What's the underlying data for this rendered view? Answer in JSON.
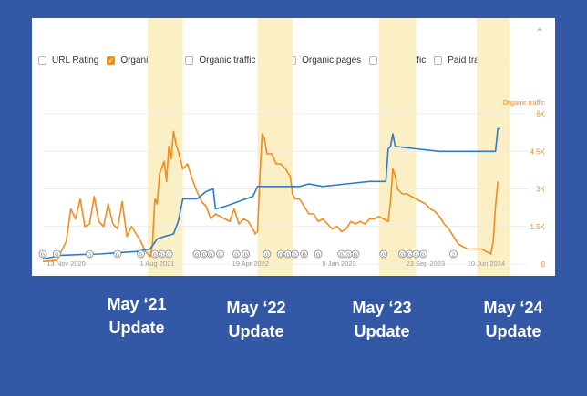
{
  "legend": [
    {
      "label": "URL Rating",
      "checked": false
    },
    {
      "label": "Organic traffic",
      "checked": true
    },
    {
      "label": "Organic traffic value",
      "checked": false
    },
    {
      "label": "Organic pages",
      "checked": false
    },
    {
      "label": "Paid traffic",
      "checked": false
    },
    {
      "label": "Paid traffic cost",
      "checked": false
    }
  ],
  "collapse_icon": "chevron-up-icon",
  "colors": {
    "organic": "#f28c1e",
    "url_rating": "#2f7bc8",
    "highlight": "#fbefc6",
    "grid": "#ececec",
    "axis_text": "#9a9a9a",
    "background": "#3358a6"
  },
  "update_labels": [
    {
      "line1": "May ‘21",
      "line2": "Update"
    },
    {
      "line1": "May ‘22",
      "line2": "Update"
    },
    {
      "line1": "May ‘23",
      "line2": "Update"
    },
    {
      "line1": "May ‘24",
      "line2": "Update"
    }
  ],
  "chart_data": {
    "type": "line",
    "right_axis_title": "Organic traffic",
    "ylim": [
      0,
      6000
    ],
    "y_ticks": [
      0,
      1500,
      3000,
      4500,
      6000
    ],
    "y_tick_labels": [
      "0",
      "1.5K",
      "3K",
      "4.5K",
      "6K"
    ],
    "xlim": [
      0,
      100
    ],
    "x_ticks": [
      {
        "x": 5,
        "label": "13 Nov 2020"
      },
      {
        "x": 24.5,
        "label": "1 Aug 2021"
      },
      {
        "x": 44.5,
        "label": "19 Apr 2022"
      },
      {
        "x": 63.5,
        "label": "5 Jan 2023"
      },
      {
        "x": 82,
        "label": "23 Sep 2023"
      },
      {
        "x": 95,
        "label": "10 Jun 2024"
      }
    ],
    "highlight_bands": [
      {
        "from": 22.5,
        "to": 30
      },
      {
        "from": 46,
        "to": 53.5
      },
      {
        "from": 72,
        "to": 80
      },
      {
        "from": 93,
        "to": 100
      }
    ],
    "annotation_markers": [
      {
        "x": 0,
        "label": "G"
      },
      {
        "x": 3,
        "label": "G"
      },
      {
        "x": 10,
        "label": "G"
      },
      {
        "x": 16,
        "label": "G"
      },
      {
        "x": 21,
        "label": "G"
      },
      {
        "x": 24,
        "label": "G"
      },
      {
        "x": 25.5,
        "label": "G"
      },
      {
        "x": 27,
        "label": "G"
      },
      {
        "x": 33,
        "label": "G"
      },
      {
        "x": 34.5,
        "label": "G"
      },
      {
        "x": 36,
        "label": "G"
      },
      {
        "x": 38,
        "label": "G"
      },
      {
        "x": 41.5,
        "label": "G"
      },
      {
        "x": 43.5,
        "label": "G"
      },
      {
        "x": 48,
        "label": "G"
      },
      {
        "x": 51,
        "label": "G"
      },
      {
        "x": 52.5,
        "label": "G"
      },
      {
        "x": 54,
        "label": "G"
      },
      {
        "x": 56,
        "label": "G"
      },
      {
        "x": 59,
        "label": "G"
      },
      {
        "x": 64,
        "label": "G"
      },
      {
        "x": 65.5,
        "label": "G"
      },
      {
        "x": 67,
        "label": "G"
      },
      {
        "x": 73,
        "label": "G"
      },
      {
        "x": 77,
        "label": "G"
      },
      {
        "x": 78.5,
        "label": "G"
      },
      {
        "x": 80,
        "label": "G"
      },
      {
        "x": 81.5,
        "label": "G"
      },
      {
        "x": 88,
        "label": "2"
      }
    ],
    "series": [
      {
        "name": "Organic traffic",
        "color": "#f28c1e",
        "points": [
          [
            0,
            100
          ],
          [
            3,
            150
          ],
          [
            5,
            900
          ],
          [
            6,
            2200
          ],
          [
            7,
            1800
          ],
          [
            8,
            2600
          ],
          [
            9,
            1500
          ],
          [
            10,
            1600
          ],
          [
            11,
            2700
          ],
          [
            12,
            1700
          ],
          [
            13,
            1500
          ],
          [
            14,
            2400
          ],
          [
            15,
            1600
          ],
          [
            16,
            1400
          ],
          [
            17,
            2500
          ],
          [
            18,
            1100
          ],
          [
            19,
            1500
          ],
          [
            20,
            1200
          ],
          [
            21,
            900
          ],
          [
            22,
            500
          ],
          [
            22.5,
            400
          ],
          [
            23,
            300
          ],
          [
            23.5,
            800
          ],
          [
            24,
            2600
          ],
          [
            24.5,
            2400
          ],
          [
            25,
            3600
          ],
          [
            26,
            4100
          ],
          [
            26.5,
            3300
          ],
          [
            27,
            4700
          ],
          [
            27.5,
            4200
          ],
          [
            28,
            5300
          ],
          [
            28.5,
            4800
          ],
          [
            29,
            4500
          ],
          [
            30,
            3800
          ],
          [
            31,
            4000
          ],
          [
            32,
            3400
          ],
          [
            33,
            2900
          ],
          [
            34,
            2500
          ],
          [
            35,
            2300
          ],
          [
            36,
            1800
          ],
          [
            37,
            2000
          ],
          [
            38,
            1900
          ],
          [
            39,
            1800
          ],
          [
            40,
            1700
          ],
          [
            41,
            2200
          ],
          [
            42,
            1600
          ],
          [
            43,
            1800
          ],
          [
            44,
            1700
          ],
          [
            45,
            1400
          ],
          [
            45.5,
            1200
          ],
          [
            46,
            1300
          ],
          [
            46.5,
            3500
          ],
          [
            47,
            5200
          ],
          [
            47.5,
            5000
          ],
          [
            48,
            4400
          ],
          [
            49,
            4400
          ],
          [
            50,
            4000
          ],
          [
            51,
            4000
          ],
          [
            52,
            3800
          ],
          [
            53,
            3500
          ],
          [
            53.5,
            2800
          ],
          [
            54,
            2600
          ],
          [
            55,
            2600
          ],
          [
            56,
            2300
          ],
          [
            57,
            2000
          ],
          [
            58,
            2000
          ],
          [
            59,
            1700
          ],
          [
            60,
            1800
          ],
          [
            61,
            1600
          ],
          [
            62,
            1400
          ],
          [
            63,
            1500
          ],
          [
            64,
            1300
          ],
          [
            65,
            1400
          ],
          [
            66,
            1700
          ],
          [
            67,
            1600
          ],
          [
            68,
            1700
          ],
          [
            69,
            1600
          ],
          [
            70,
            1800
          ],
          [
            71,
            1800
          ],
          [
            72,
            1900
          ],
          [
            73,
            1800
          ],
          [
            74,
            1700
          ],
          [
            74.5,
            2500
          ],
          [
            75,
            3800
          ],
          [
            75.5,
            3500
          ],
          [
            76,
            3000
          ],
          [
            77,
            2800
          ],
          [
            78,
            2800
          ],
          [
            79,
            2700
          ],
          [
            80,
            2600
          ],
          [
            81,
            2500
          ],
          [
            82,
            2400
          ],
          [
            83,
            2200
          ],
          [
            84,
            2100
          ],
          [
            85,
            1900
          ],
          [
            86,
            1600
          ],
          [
            87,
            1400
          ],
          [
            88,
            1100
          ],
          [
            89,
            800
          ],
          [
            90,
            700
          ],
          [
            91,
            600
          ],
          [
            92,
            600
          ],
          [
            93,
            600
          ],
          [
            94,
            600
          ],
          [
            95,
            500
          ],
          [
            96,
            400
          ],
          [
            96.5,
            900
          ],
          [
            97,
            2300
          ],
          [
            97.5,
            3300
          ]
        ]
      },
      {
        "name": "URL Rating",
        "color": "#2f7bc8",
        "points": [
          [
            0,
            200
          ],
          [
            4,
            350
          ],
          [
            8,
            380
          ],
          [
            12,
            400
          ],
          [
            16,
            450
          ],
          [
            20,
            500
          ],
          [
            23,
            600
          ],
          [
            24.5,
            1000
          ],
          [
            26,
            1100
          ],
          [
            28,
            1200
          ],
          [
            29,
            1700
          ],
          [
            30,
            2600
          ],
          [
            33,
            2600
          ],
          [
            35,
            2900
          ],
          [
            36.5,
            3000
          ],
          [
            37,
            2200
          ],
          [
            39,
            2300
          ],
          [
            42,
            2500
          ],
          [
            45,
            2700
          ],
          [
            46,
            3100
          ],
          [
            50,
            3100
          ],
          [
            55,
            3100
          ],
          [
            57,
            3200
          ],
          [
            60,
            3100
          ],
          [
            65,
            3200
          ],
          [
            70,
            3300
          ],
          [
            73.5,
            3300
          ],
          [
            74,
            4600
          ],
          [
            74.5,
            4700
          ],
          [
            75,
            5200
          ],
          [
            75.5,
            4700
          ],
          [
            80,
            4600
          ],
          [
            85,
            4500
          ],
          [
            90,
            4500
          ],
          [
            95,
            4500
          ],
          [
            97,
            4500
          ],
          [
            97.5,
            5400
          ],
          [
            98,
            5400
          ]
        ]
      }
    ]
  }
}
